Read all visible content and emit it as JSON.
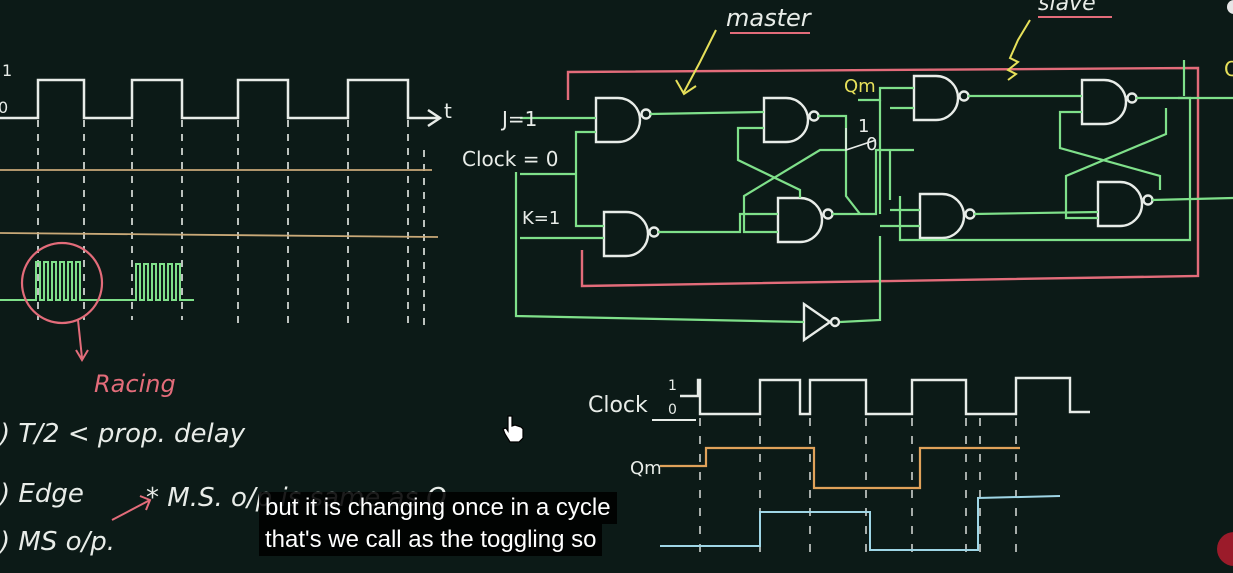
{
  "labels": {
    "master": "master",
    "slave": "slave",
    "qm": "Qm",
    "j_input": "J=1",
    "clock_input": "Clock = 0",
    "k_input": "K=1",
    "toggle_one": "1",
    "toggle_zero": "0",
    "level_high": "1",
    "level_low": "0",
    "time_axis": "t",
    "racing": "Racing",
    "clock_label": "Clock",
    "clock_high": "1",
    "clock_low": "0",
    "qm_wave_label": "Qm",
    "q_out_partial": "Q"
  },
  "notes": {
    "line1": ") T/2 < prop. delay",
    "line2": ") Edge",
    "line2b": "* M.S. o/p is same as Q",
    "line3": ") MS o/p."
  },
  "captions": {
    "line1": "but it is changing once in a cycle",
    "line2": "that's we call as the toggling so"
  },
  "colors": {
    "background": "#0c1a17",
    "chalk_white": "#e8ece8",
    "chalk_green": "#7fe08a",
    "chalk_pink": "#e36c7a",
    "chalk_orange": "#e0a25a",
    "chalk_blue": "#9fd6e6",
    "chalk_yellow": "#e6e05a",
    "chalk_tan": "#c9a978"
  }
}
